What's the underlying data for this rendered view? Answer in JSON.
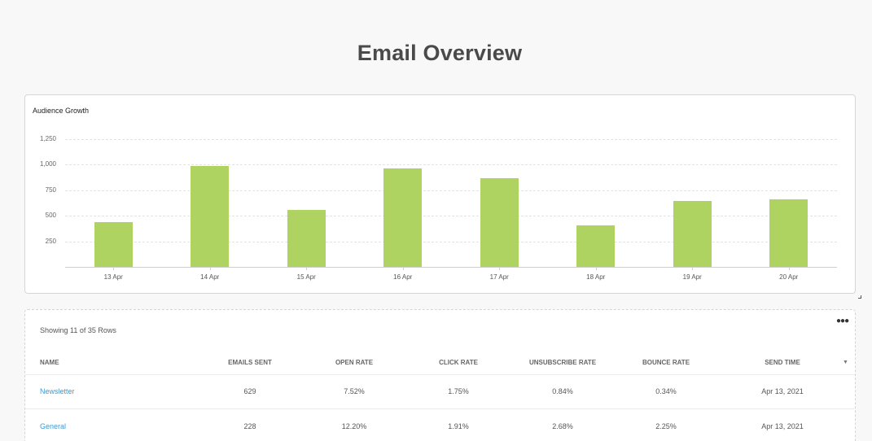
{
  "page": {
    "title": "Email Overview"
  },
  "chart_card": {
    "title": "Audience Growth"
  },
  "chart_data": {
    "type": "bar",
    "title": "Audience Growth",
    "xlabel": "",
    "ylabel": "",
    "categories": [
      "13 Apr",
      "14 Apr",
      "15 Apr",
      "16 Apr",
      "17 Apr",
      "18 Apr",
      "19 Apr",
      "20 Apr"
    ],
    "values": [
      438,
      987,
      557,
      965,
      868,
      406,
      645,
      661
    ],
    "ylim": [
      0,
      1250
    ],
    "yticks": [
      "1,250",
      "1,000",
      "750",
      "500",
      "250"
    ],
    "grid": true,
    "legend": "none",
    "bar_color": "#aed361"
  },
  "table": {
    "row_count_label": "Showing 11 of 35 Rows",
    "more_icon": "ellipsis-icon",
    "sort_icon": "caret-down-icon",
    "columns": [
      "Name",
      "Emails Sent",
      "Open Rate",
      "Click Rate",
      "Unsubscribe Rate",
      "Bounce Rate",
      "Send Time"
    ],
    "rows": [
      {
        "name": "Newsletter",
        "emails_sent": "629",
        "open_rate": "7.52%",
        "click_rate": "1.75%",
        "unsubscribe_rate": "0.84%",
        "bounce_rate": "0.34%",
        "send_time": "Apr 13, 2021"
      },
      {
        "name": "General",
        "emails_sent": "228",
        "open_rate": "12.20%",
        "click_rate": "1.91%",
        "unsubscribe_rate": "2.68%",
        "bounce_rate": "2.25%",
        "send_time": "Apr 13, 2021"
      }
    ],
    "link_color": "#3d9ad6"
  }
}
